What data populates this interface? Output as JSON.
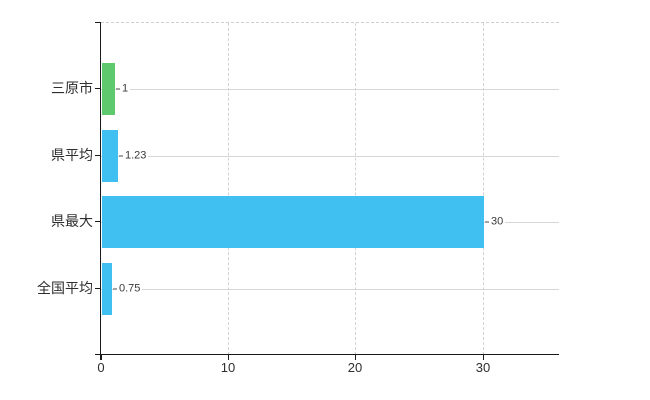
{
  "chart_data": {
    "type": "bar",
    "orientation": "horizontal",
    "title": "",
    "xlabel": "",
    "ylabel": "",
    "categories": [
      "三原市",
      "県平均",
      "県最大",
      "全国平均"
    ],
    "values": [
      1,
      1.23,
      30,
      0.75
    ],
    "value_labels": [
      "1",
      "1.23",
      "30",
      "0.75"
    ],
    "bar_colors": [
      "#5fc96d",
      "#40c0f0",
      "#40c0f0",
      "#40c0f0"
    ],
    "x_ticks": [
      0,
      10,
      20,
      30
    ],
    "x_tick_labels": [
      "0",
      "10",
      "20",
      "30"
    ],
    "xlim": [
      0,
      36
    ],
    "grid": {
      "vertical": "dashed",
      "horizontal": "solid",
      "color": "#d2d2d2",
      "plot_top_border": "dashed"
    },
    "legend": "none",
    "background_color": "#ffffff",
    "axis_color": "#1a1a1a"
  }
}
